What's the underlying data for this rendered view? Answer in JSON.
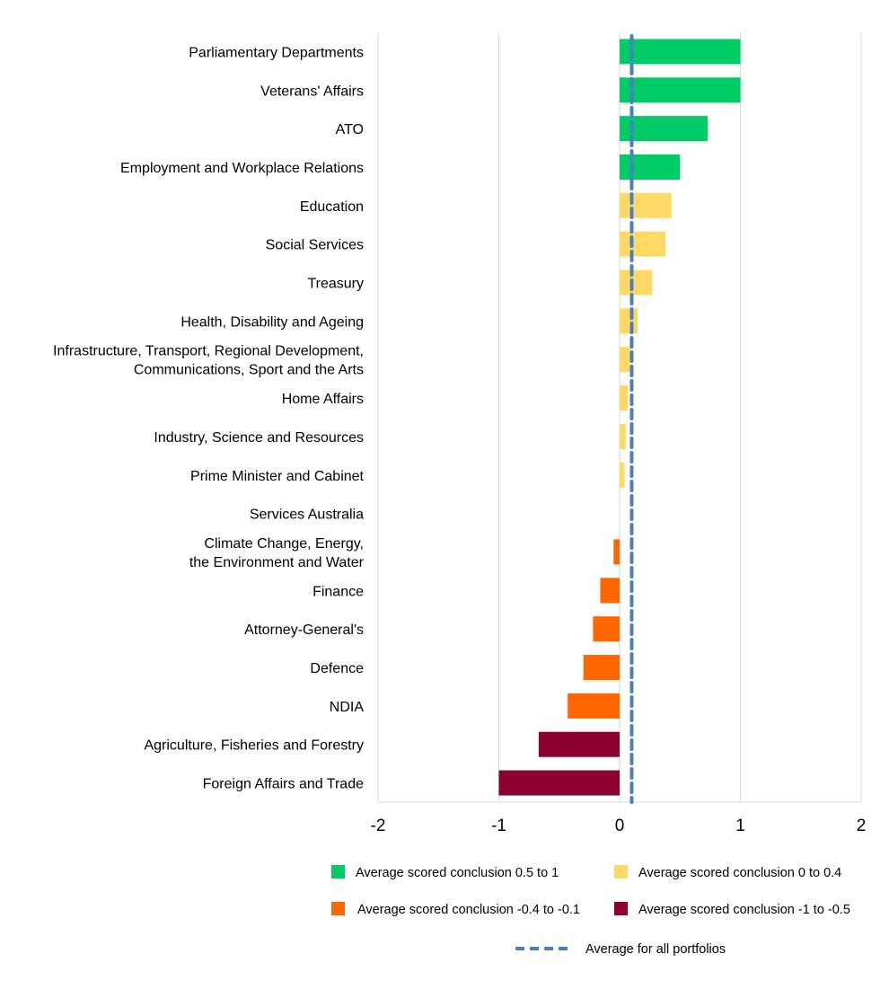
{
  "chart_data": {
    "type": "bar",
    "orientation": "horizontal",
    "title": "",
    "xlabel": "",
    "ylabel": "",
    "xlim": [
      -2,
      2
    ],
    "xticks": [
      "-2",
      "-1",
      "0",
      "1",
      "2"
    ],
    "grid": "vertical",
    "categories": [
      [
        "Parliamentary Departments"
      ],
      [
        "Veterans' Affairs"
      ],
      [
        "ATO"
      ],
      [
        "Employment and Workplace Relations"
      ],
      [
        "Education"
      ],
      [
        "Social Services"
      ],
      [
        "Treasury"
      ],
      [
        "Health, Disability and Ageing"
      ],
      [
        "Infrastructure, Transport, Regional Development,",
        "Communications, Sport and the Arts"
      ],
      [
        "Home Affairs"
      ],
      [
        "Industry, Science and Resources"
      ],
      [
        "Prime Minister and Cabinet"
      ],
      [
        "Services Australia"
      ],
      [
        "Climate Change, Energy,",
        "the Environment and Water"
      ],
      [
        "Finance"
      ],
      [
        "Attorney-General's"
      ],
      [
        "Defence"
      ],
      [
        "NDIA"
      ],
      [
        "Agriculture, Fisheries and Forestry"
      ],
      [
        "Foreign Affairs and Trade"
      ]
    ],
    "values": [
      1.0,
      1.0,
      0.73,
      0.5,
      0.43,
      0.38,
      0.27,
      0.15,
      0.09,
      0.07,
      0.05,
      0.04,
      0.0,
      -0.05,
      -0.16,
      -0.22,
      -0.3,
      -0.43,
      -0.67,
      -1.0
    ],
    "groups": [
      0,
      0,
      0,
      0,
      1,
      1,
      1,
      1,
      1,
      1,
      1,
      1,
      1,
      2,
      2,
      2,
      2,
      2,
      3,
      3
    ],
    "average": 0.1,
    "legend": {
      "placement": "bottom",
      "items": [
        {
          "label": "Average scored conclusion 0.5 to 1",
          "color": "#00CC66"
        },
        {
          "label": "Average scored conclusion 0 to 0.4",
          "color": "#FFD966"
        },
        {
          "label": "Average scored conclusion -0.4 to -0.1",
          "color": "#FF6600"
        },
        {
          "label": "Average scored conclusion -1 to -0.5",
          "color": "#8B002E"
        }
      ],
      "average_label": "Average for all portfolios",
      "average_color": "#4A7EC7"
    }
  }
}
